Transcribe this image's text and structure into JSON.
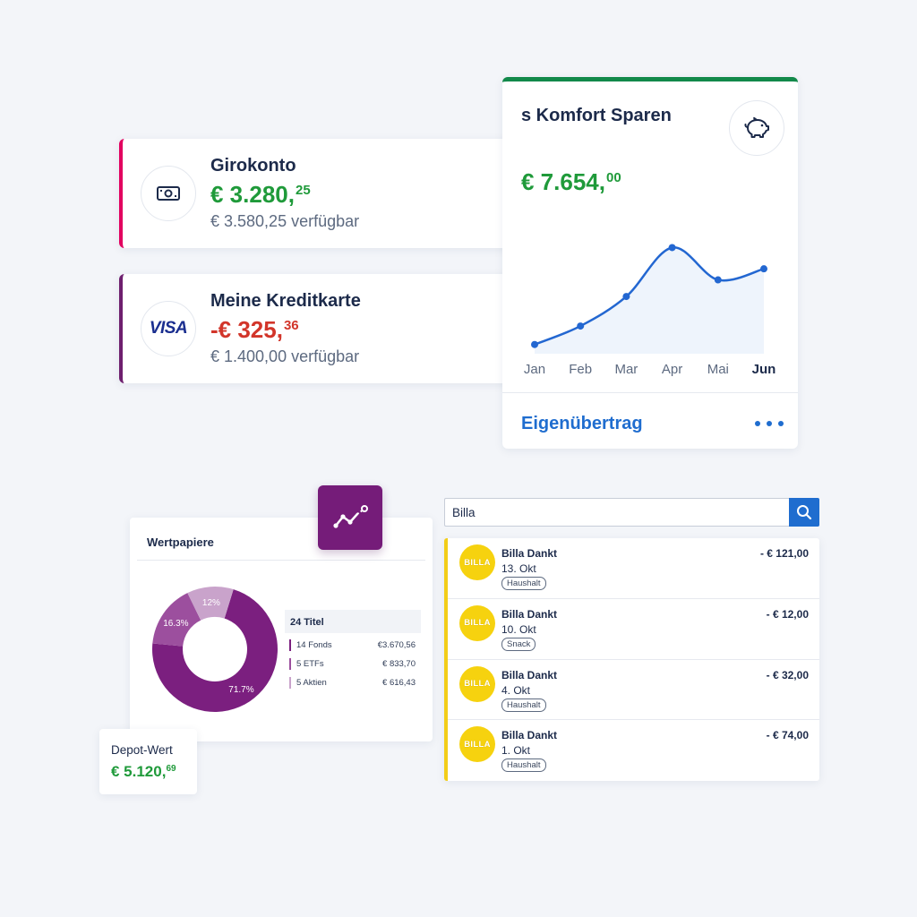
{
  "accounts": [
    {
      "name": "Girokonto",
      "amount_main": "€ 3.280,",
      "amount_cents": "25",
      "available": "€ 3.580,25 verfügbar",
      "icon": "banknote-icon",
      "accent": "#e2005f"
    },
    {
      "name": "Meine Kreditkarte",
      "amount_main": "-€ 325,",
      "amount_cents": "36",
      "available": "€ 1.400,00 verfügbar",
      "icon": "visa-logo",
      "logo_text": "VISA",
      "accent": "#6e1f6e"
    }
  ],
  "savings": {
    "title": "s Komfort Sparen",
    "amount_main": "€ 7.654,",
    "amount_cents": "00",
    "icon": "piggy-bank-icon",
    "link": "Eigenübertrag",
    "more_icon": "more-dots-icon",
    "accent": "#12894a",
    "chart_data": {
      "type": "line",
      "categories": [
        "Jan",
        "Feb",
        "Mar",
        "Apr",
        "Mai",
        "Jun"
      ],
      "values": [
        10,
        30,
        62,
        115,
        80,
        92
      ],
      "ylim": [
        0,
        130
      ],
      "highlighted_category": "Jun",
      "grid": false,
      "color": "#2367d1"
    }
  },
  "portfolio": {
    "title": "Wertpapiere",
    "chart_data": {
      "type": "pie",
      "slices": [
        {
          "label": "71.7%",
          "value": 71.7,
          "color": "#7b1f7f"
        },
        {
          "label": "16.3%",
          "value": 16.3,
          "color": "#9c4f9e"
        },
        {
          "label": "12%",
          "value": 12,
          "color": "#c9a3cb"
        }
      ],
      "donut": true
    },
    "holdings_header": "24 Titel",
    "holdings": [
      {
        "label": "14 Fonds",
        "value": "€3.670,56",
        "color": "#7b1f7f"
      },
      {
        "label": "5 ETFs",
        "value": "€ 833,70",
        "color": "#9c4f9e"
      },
      {
        "label": "5 Aktien",
        "value": "€ 616,43",
        "color": "#c9a3cb"
      }
    ],
    "trend_icon": "trend-line-icon",
    "depot_label": "Depot-Wert",
    "depot_amount_main": "€ 5.120,",
    "depot_amount_cents": "69"
  },
  "search": {
    "value": "Billa",
    "button_icon": "search-icon"
  },
  "transactions": [
    {
      "merchant": "Billa Dankt",
      "date": "13. Okt",
      "tag": "Haushalt",
      "amount": "- € 121,00",
      "logo_text": "BILLA"
    },
    {
      "merchant": "Billa Dankt",
      "date": "10. Okt",
      "tag": "Snack",
      "amount": "- € 12,00",
      "logo_text": "BILLA"
    },
    {
      "merchant": "Billa Dankt",
      "date": "4. Okt",
      "tag": "Haushalt",
      "amount": "- € 32,00",
      "logo_text": "BILLA"
    },
    {
      "merchant": "Billa Dankt",
      "date": "1. Okt",
      "tag": "Haushalt",
      "amount": "- € 74,00",
      "logo_text": "BILLA"
    }
  ]
}
